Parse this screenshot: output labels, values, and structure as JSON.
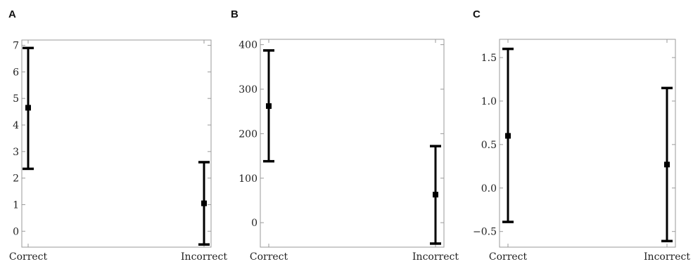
{
  "chart_data": [
    {
      "type": "scatter",
      "panel": "A",
      "categories": [
        "Correct",
        "Incorrect"
      ],
      "series": [
        {
          "points": [
            {
              "category": "Correct",
              "y": 4.65,
              "low": 2.35,
              "high": 6.9
            },
            {
              "category": "Incorrect",
              "y": 1.05,
              "low": -0.5,
              "high": 2.6
            }
          ]
        }
      ],
      "ylim": [
        -0.6,
        7.2
      ],
      "yticks": [
        0,
        1,
        2,
        3,
        4,
        5,
        6,
        7
      ],
      "ytick_labels": [
        "0",
        "1",
        "2",
        "3",
        "4",
        "5",
        "6",
        "7"
      ],
      "title": "",
      "xlabel": "",
      "ylabel": "",
      "grid": false
    },
    {
      "type": "scatter",
      "panel": "B",
      "categories": [
        "Correct",
        "Incorrect"
      ],
      "series": [
        {
          "points": [
            {
              "category": "Correct",
              "y": 262,
              "low": 138,
              "high": 387
            },
            {
              "category": "Incorrect",
              "y": 63,
              "low": -47,
              "high": 172
            }
          ]
        }
      ],
      "ylim": [
        -55,
        412
      ],
      "yticks": [
        0,
        100,
        200,
        300,
        400
      ],
      "ytick_labels": [
        "0",
        "100",
        "200",
        "300",
        "400"
      ],
      "title": "",
      "xlabel": "",
      "ylabel": "",
      "grid": false
    },
    {
      "type": "scatter",
      "panel": "C",
      "categories": [
        "Correct",
        "Incorrect"
      ],
      "series": [
        {
          "points": [
            {
              "category": "Correct",
              "y": 0.6,
              "low": -0.39,
              "high": 1.6
            },
            {
              "category": "Incorrect",
              "y": 0.27,
              "low": -0.61,
              "high": 1.15
            }
          ]
        }
      ],
      "ylim": [
        -0.68,
        1.71
      ],
      "yticks": [
        -0.5,
        0.0,
        0.5,
        1.0,
        1.5
      ],
      "ytick_labels": [
        "−0.5",
        "0.0",
        "0.5",
        "1.0",
        "1.5"
      ],
      "title": "",
      "xlabel": "",
      "ylabel": "",
      "grid": false
    }
  ]
}
